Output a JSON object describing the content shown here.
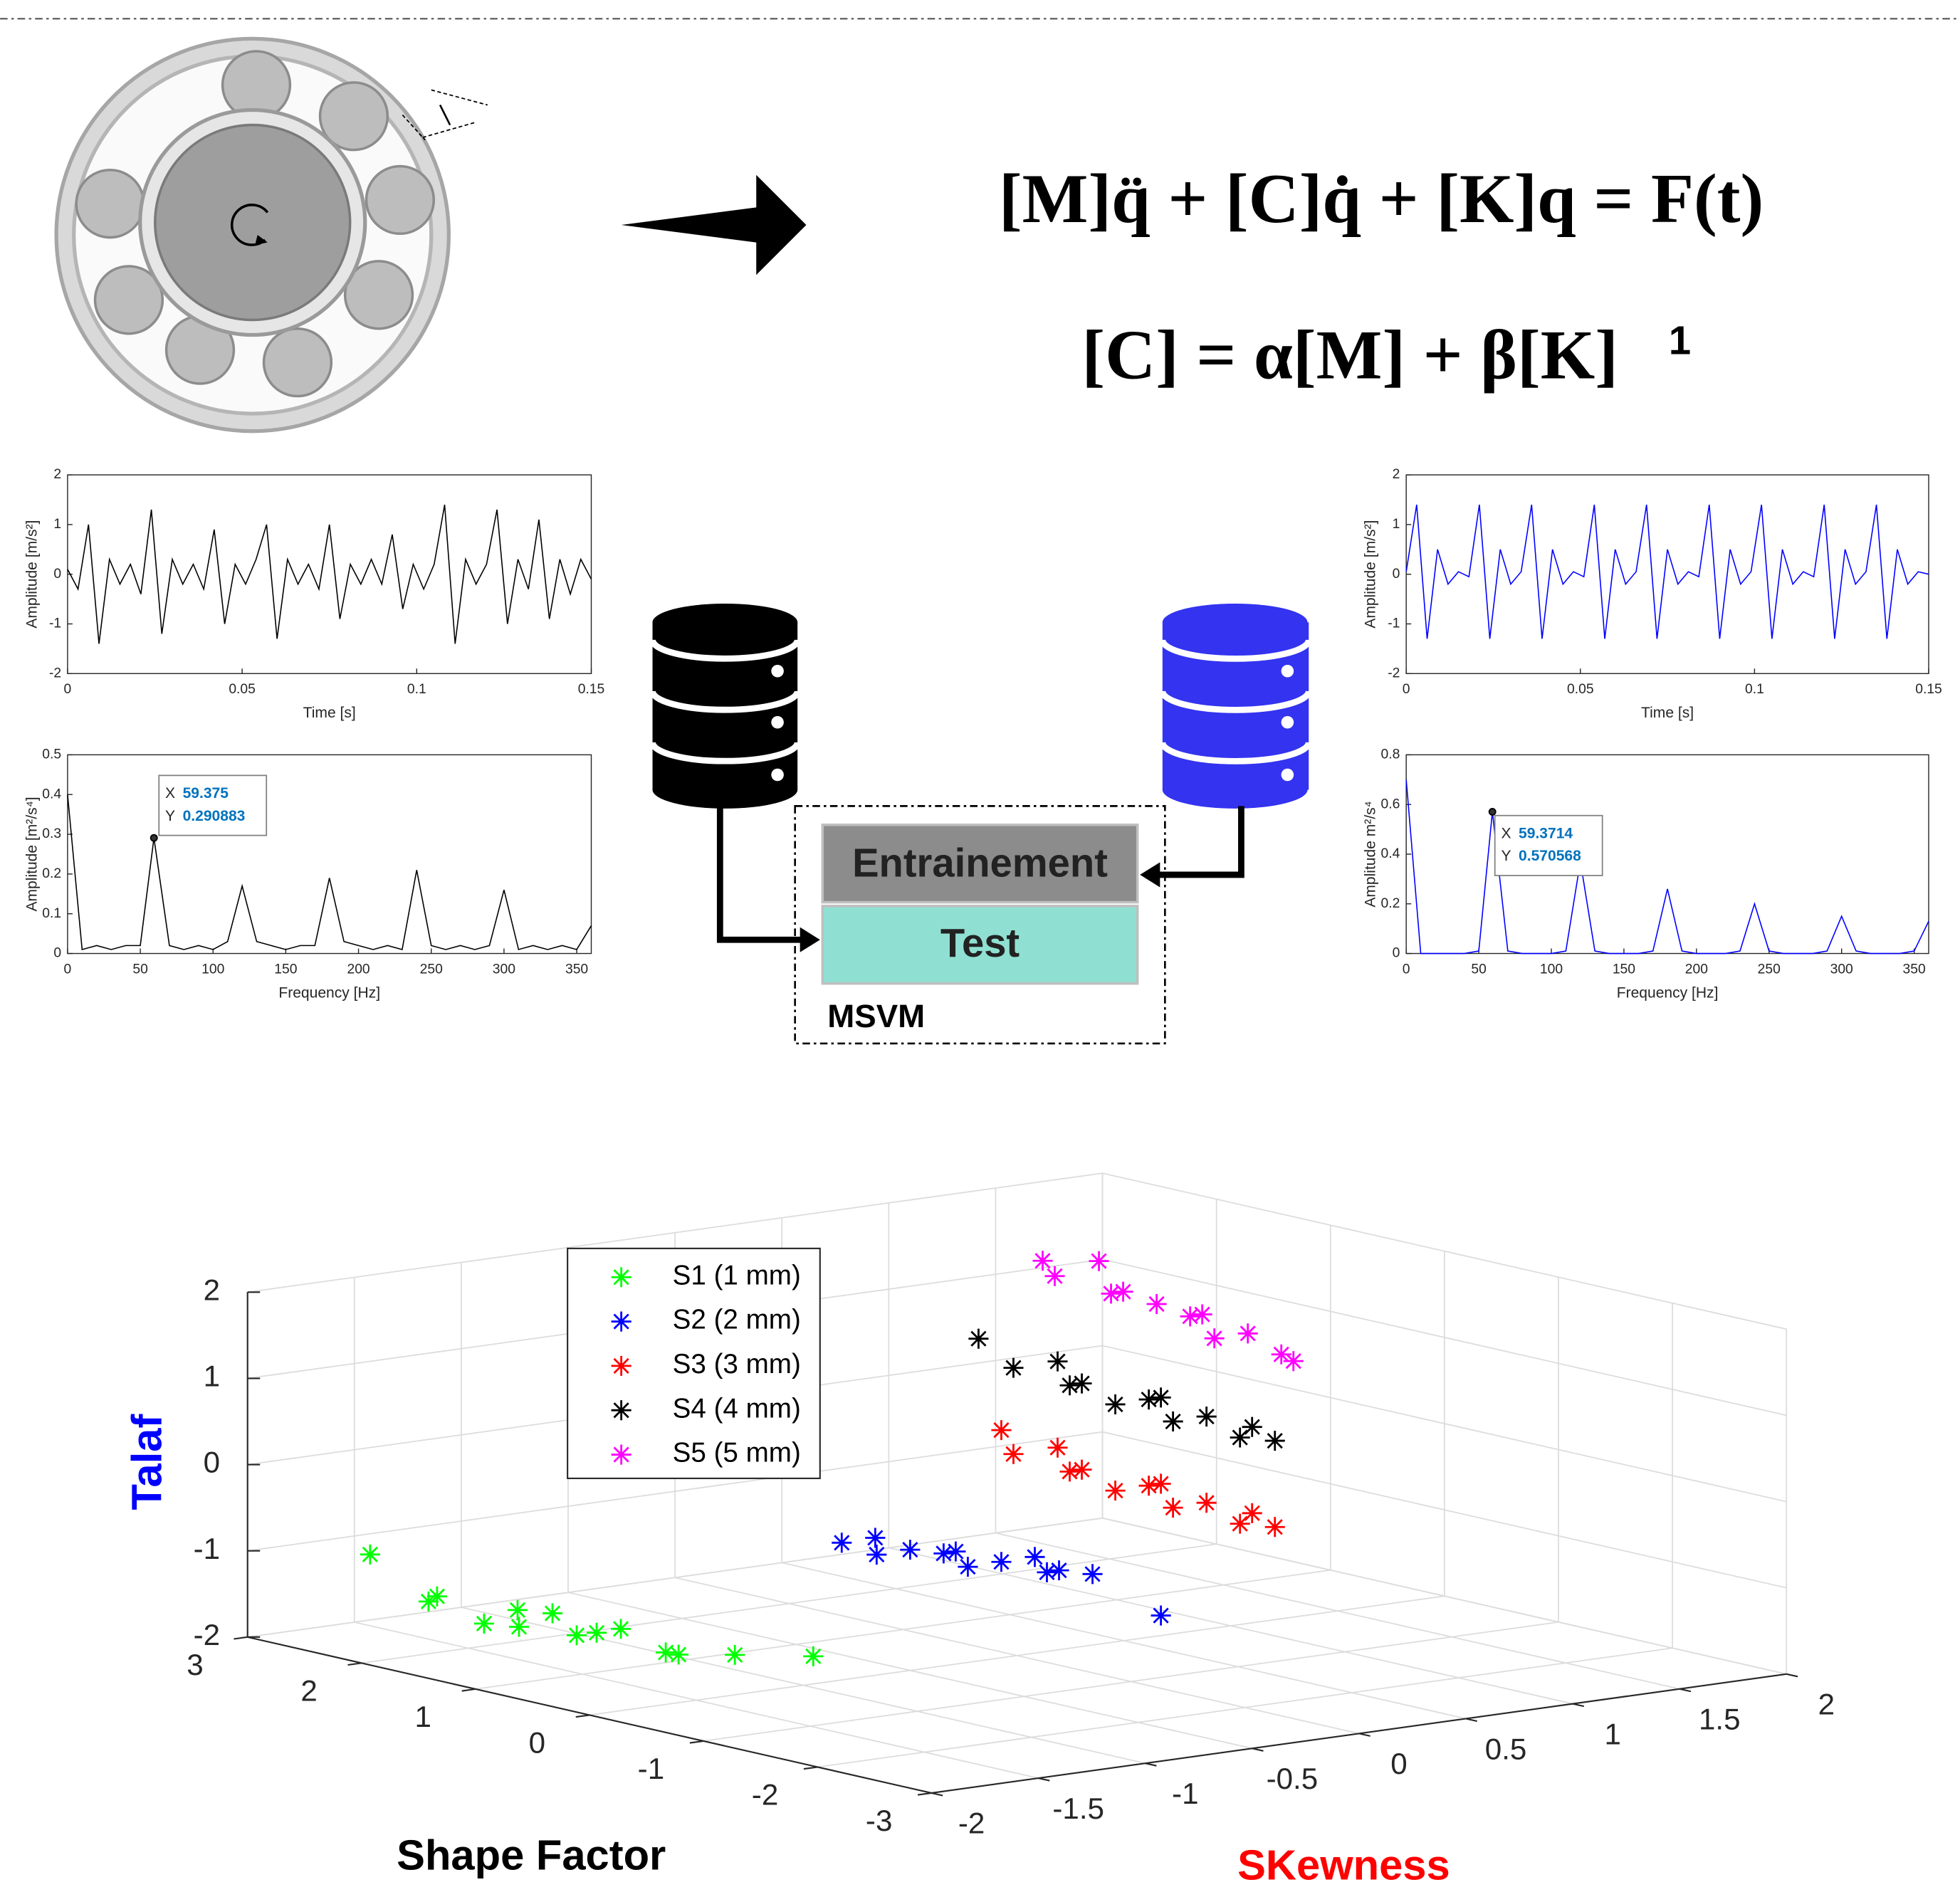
{
  "equations": {
    "motion": "[M]q̈ + [C]q̇ + [K]q = F(t)",
    "damping": "[C] = α[M] + β[K]",
    "note": "1"
  },
  "diagram": {
    "training": "Entrainement",
    "test": "Test",
    "classifier": "MSVM"
  },
  "chart_data": [
    {
      "type": "line",
      "xlabel": "Time [s]",
      "ylabel": "Amplitude [m/s²]",
      "color": "#000000",
      "x": [
        0,
        0.003,
        0.006,
        0.009,
        0.012,
        0.015,
        0.018,
        0.021,
        0.024,
        0.027,
        0.03,
        0.033,
        0.036,
        0.039,
        0.042,
        0.045,
        0.048,
        0.051,
        0.054,
        0.057,
        0.06,
        0.063,
        0.066,
        0.069,
        0.072,
        0.075,
        0.078,
        0.081,
        0.084,
        0.087,
        0.09,
        0.093,
        0.096,
        0.099,
        0.102,
        0.105,
        0.108,
        0.111,
        0.114,
        0.117,
        0.12,
        0.123,
        0.126,
        0.129,
        0.132,
        0.135,
        0.138,
        0.141,
        0.144,
        0.147,
        0.15
      ],
      "values": [
        0.1,
        -0.3,
        1.0,
        -1.4,
        0.3,
        -0.2,
        0.2,
        -0.4,
        1.3,
        -1.2,
        0.3,
        -0.2,
        0.2,
        -0.3,
        0.9,
        -1.0,
        0.2,
        -0.2,
        0.3,
        1.0,
        -1.3,
        0.3,
        -0.2,
        0.2,
        -0.3,
        1.0,
        -0.9,
        0.2,
        -0.2,
        0.3,
        -0.2,
        0.8,
        -0.7,
        0.2,
        -0.3,
        0.2,
        1.4,
        -1.4,
        0.3,
        -0.2,
        0.2,
        1.3,
        -1.0,
        0.3,
        -0.3,
        1.1,
        -0.9,
        0.3,
        -0.4,
        0.3,
        -0.1
      ],
      "xlim": [
        0,
        0.15
      ],
      "xticks": [
        0,
        0.05,
        0.1,
        0.15
      ],
      "ylim": [
        -2,
        2
      ],
      "yticks": [
        -2,
        -1,
        0,
        1,
        2
      ]
    },
    {
      "type": "line",
      "xlabel": "Frequency [Hz]",
      "ylabel": "Amplitude [m²/s⁴]",
      "color": "#000000",
      "x": [
        0,
        10,
        20,
        30,
        40,
        50,
        59.375,
        70,
        80,
        90,
        100,
        110,
        120,
        130,
        140,
        150,
        160,
        170,
        180,
        190,
        200,
        210,
        220,
        230,
        240,
        250,
        260,
        270,
        280,
        290,
        300,
        310,
        320,
        330,
        340,
        350,
        360
      ],
      "values": [
        0.4,
        0.01,
        0.02,
        0.01,
        0.02,
        0.02,
        0.290883,
        0.02,
        0.01,
        0.02,
        0.01,
        0.03,
        0.17,
        0.03,
        0.02,
        0.01,
        0.02,
        0.02,
        0.19,
        0.03,
        0.02,
        0.01,
        0.02,
        0.01,
        0.21,
        0.02,
        0.01,
        0.02,
        0.01,
        0.02,
        0.16,
        0.01,
        0.02,
        0.01,
        0.02,
        0.01,
        0.07
      ],
      "xlim": [
        0,
        360
      ],
      "xticks": [
        0,
        50,
        100,
        150,
        200,
        250,
        300,
        350
      ],
      "ylim": [
        0,
        0.5
      ],
      "yticks": [
        0,
        0.1,
        0.2,
        0.3,
        0.4,
        0.5
      ],
      "datatip": {
        "x_label": "X",
        "x": 59.375,
        "y_label": "Y",
        "y": 0.290883
      }
    },
    {
      "type": "line",
      "xlabel": "Time [s]",
      "ylabel": "Amplitude [m/s²]",
      "color": "#0000ff",
      "x": [
        0,
        0.003,
        0.006,
        0.009,
        0.012,
        0.015,
        0.018,
        0.021,
        0.024,
        0.027,
        0.03,
        0.033,
        0.036,
        0.039,
        0.042,
        0.045,
        0.048,
        0.051,
        0.054,
        0.057,
        0.06,
        0.063,
        0.066,
        0.069,
        0.072,
        0.075,
        0.078,
        0.081,
        0.084,
        0.087,
        0.09,
        0.093,
        0.096,
        0.099,
        0.102,
        0.105,
        0.108,
        0.111,
        0.114,
        0.117,
        0.12,
        0.123,
        0.126,
        0.129,
        0.132,
        0.135,
        0.138,
        0.141,
        0.144,
        0.147,
        0.15
      ],
      "values": [
        0.05,
        1.4,
        -1.3,
        0.5,
        -0.2,
        0.05,
        -0.05,
        1.4,
        -1.3,
        0.5,
        -0.2,
        0.05,
        1.4,
        -1.3,
        0.5,
        -0.2,
        0.05,
        -0.05,
        1.4,
        -1.3,
        0.5,
        -0.2,
        0.05,
        1.4,
        -1.3,
        0.5,
        -0.2,
        0.05,
        -0.05,
        1.4,
        -1.3,
        0.5,
        -0.2,
        0.05,
        1.4,
        -1.3,
        0.5,
        -0.2,
        0.05,
        -0.05,
        1.4,
        -1.3,
        0.5,
        -0.2,
        0.05,
        1.4,
        -1.3,
        0.5,
        -0.2,
        0.05,
        0
      ],
      "xlim": [
        0,
        0.15
      ],
      "xticks": [
        0,
        0.05,
        0.1,
        0.15
      ],
      "ylim": [
        -2,
        2
      ],
      "yticks": [
        -2,
        -1,
        0,
        1,
        2
      ]
    },
    {
      "type": "line",
      "xlabel": "Frequency [Hz]",
      "ylabel": "Amplitude m²/s⁴",
      "color": "#0000ff",
      "x": [
        0,
        10,
        20,
        30,
        40,
        50,
        59.3714,
        70,
        80,
        90,
        100,
        110,
        120,
        130,
        140,
        150,
        160,
        170,
        180,
        190,
        200,
        210,
        220,
        230,
        240,
        250,
        260,
        270,
        280,
        290,
        300,
        310,
        320,
        330,
        340,
        350,
        360
      ],
      "values": [
        0.7,
        0,
        0,
        0,
        0,
        0.01,
        0.570568,
        0.01,
        0,
        0,
        0,
        0.01,
        0.37,
        0.01,
        0,
        0,
        0,
        0.01,
        0.26,
        0.01,
        0,
        0,
        0,
        0.01,
        0.2,
        0.01,
        0,
        0,
        0,
        0.01,
        0.15,
        0.01,
        0,
        0,
        0,
        0.01,
        0.13
      ],
      "xlim": [
        0,
        360
      ],
      "xticks": [
        0,
        50,
        100,
        150,
        200,
        250,
        300,
        350
      ],
      "ylim": [
        0,
        0.8
      ],
      "yticks": [
        0,
        0.2,
        0.4,
        0.6,
        0.8
      ],
      "datatip": {
        "x_label": "X",
        "x": 59.3714,
        "y_label": "Y",
        "y": 0.570568
      }
    },
    {
      "type": "scatter3d",
      "xlabel": "Shape Factor",
      "ylabel": "SKewness",
      "zlabel": "Talaf",
      "xlabel_color": "#000000",
      "ylabel_color": "#ff0000",
      "zlabel_color": "#0000ff",
      "xlim": [
        -3,
        3
      ],
      "xticks": [
        -3,
        -2,
        -1,
        0,
        1,
        2,
        3
      ],
      "ylim": [
        -2,
        2
      ],
      "yticks": [
        -2,
        -1.5,
        -1,
        -0.5,
        0,
        0.5,
        1,
        1.5,
        2
      ],
      "zlim": [
        -2,
        2
      ],
      "zticks": [
        -2,
        -1,
        0,
        1,
        2
      ],
      "grid": true,
      "legend": "upper-left",
      "series": [
        {
          "name": "S1 (1 mm)",
          "color": "#00ff00",
          "x": [
            2.3,
            1.9,
            1.6,
            1.3,
            1.1,
            0.9,
            0.7,
            0.5,
            0.3,
            0.1,
            -0.2,
            -0.5,
            -0.9,
            -1.4
          ],
          "y": [
            -1.8,
            -1.7,
            -1.9,
            -1.8,
            -1.75,
            -1.85,
            -1.8,
            -1.7,
            -1.9,
            -1.8,
            -1.75,
            -1.85,
            -1.8,
            -1.7
          ],
          "z": [
            -0.9,
            -1.3,
            -1.2,
            -1.4,
            -1.2,
            -1.3,
            -1.1,
            -1.3,
            -1.2,
            -1.1,
            -1.3,
            -1.2,
            -1.1,
            -1.0
          ]
        },
        {
          "name": "S2  (2 mm)",
          "color": "#0000ff",
          "x": [
            0.6,
            0.4,
            0.2,
            0,
            -0.2,
            -0.4,
            -0.6,
            -0.8,
            -1.0,
            -1.2,
            -1.4,
            -1.6,
            -2.2
          ],
          "y": [
            -0.5,
            -0.45,
            -0.55,
            -0.5,
            -0.45,
            -0.5,
            -0.55,
            -0.5,
            -0.45,
            -0.5,
            -0.55,
            -0.5,
            -0.5
          ],
          "z": [
            -0.7,
            -0.6,
            -0.7,
            -0.6,
            -0.6,
            -0.5,
            -0.6,
            -0.5,
            -0.4,
            -0.5,
            -0.4,
            -0.4,
            -0.7
          ]
        },
        {
          "name": "S3  (3 mm)",
          "color": "#ff0000",
          "x": [
            0.7,
            0.5,
            0.3,
            0.1,
            -0.1,
            -0.3,
            -0.5,
            -0.7,
            -0.9,
            -1.1,
            -1.3,
            -1.5,
            -1.7
          ],
          "y": [
            0.3,
            0.25,
            0.35,
            0.3,
            0.25,
            0.3,
            0.35,
            0.3,
            0.25,
            0.3,
            0.35,
            0.3,
            0.3
          ],
          "z": [
            0.3,
            0.1,
            0.2,
            0.0,
            0.1,
            -0.1,
            0.0,
            0.1,
            -0.1,
            0.0,
            -0.2,
            0.0,
            -0.1
          ]
        },
        {
          "name": "S4  (4 mm)",
          "color": "#000000",
          "x": [
            0.9,
            0.5,
            0.3,
            0.1,
            -0.1,
            -0.3,
            -0.5,
            -0.7,
            -0.9,
            -1.1,
            -1.3,
            -1.5,
            -1.7
          ],
          "y": [
            0.3,
            0.25,
            0.35,
            0.3,
            0.25,
            0.3,
            0.35,
            0.3,
            0.25,
            0.3,
            0.35,
            0.3,
            0.3
          ],
          "z": [
            1.3,
            1.1,
            1.2,
            1.0,
            1.1,
            0.9,
            1.0,
            1.1,
            0.9,
            1.0,
            0.8,
            1.0,
            0.9
          ]
        },
        {
          "name": "S5 (5 mm)",
          "color": "#ff00ff",
          "x": [
            0.9,
            0.7,
            0.5,
            0.3,
            0.1,
            -0.1,
            -0.3,
            -0.5,
            -0.7,
            -0.9,
            -1.1,
            -1.3
          ],
          "y": [
            0.6,
            0.55,
            0.65,
            0.6,
            0.55,
            0.6,
            0.65,
            0.6,
            0.55,
            0.6,
            0.65,
            0.6
          ],
          "z": [
            2.1,
            2.0,
            2.2,
            1.9,
            2.0,
            1.9,
            1.8,
            1.9,
            1.7,
            1.8,
            1.6,
            1.6
          ]
        }
      ]
    }
  ]
}
